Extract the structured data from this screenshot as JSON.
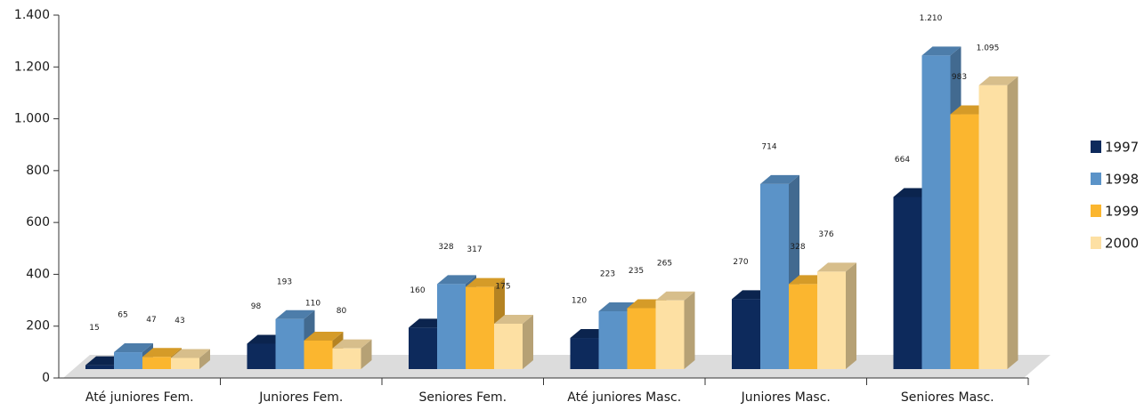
{
  "chart_data": {
    "type": "bar3d",
    "categories": [
      "Até juniores Fem.",
      "Juniores Fem.",
      "Seniores Fem.",
      "Até juniores Masc.",
      "Juniores  Masc.",
      "Seniores Masc."
    ],
    "series": [
      {
        "name": "1997",
        "color": "#0d2a5c",
        "values": [
          15,
          98,
          160,
          120,
          270,
          664
        ]
      },
      {
        "name": "1998",
        "color": "#5b93c8",
        "values": [
          65,
          193,
          328,
          223,
          714,
          1210
        ],
        "value_labels": [
          "65",
          "193",
          "328",
          "223",
          "714",
          "1.210"
        ]
      },
      {
        "name": "1999",
        "color": "#fbb62f",
        "values": [
          47,
          110,
          317,
          235,
          328,
          983
        ]
      },
      {
        "name": "2000",
        "color": "#fde0a3",
        "values": [
          43,
          80,
          175,
          265,
          376,
          1095
        ],
        "value_labels": [
          "43",
          "80",
          "175",
          "265",
          "376",
          "1.095"
        ]
      }
    ],
    "ylim": [
      0,
      1400
    ],
    "yticks": [
      0,
      200,
      400,
      600,
      800,
      {
        "value": 1000,
        "label": "1.000"
      },
      {
        "value": 1200,
        "label": "1.200"
      },
      {
        "value": 1400,
        "label": "1.400"
      }
    ]
  }
}
